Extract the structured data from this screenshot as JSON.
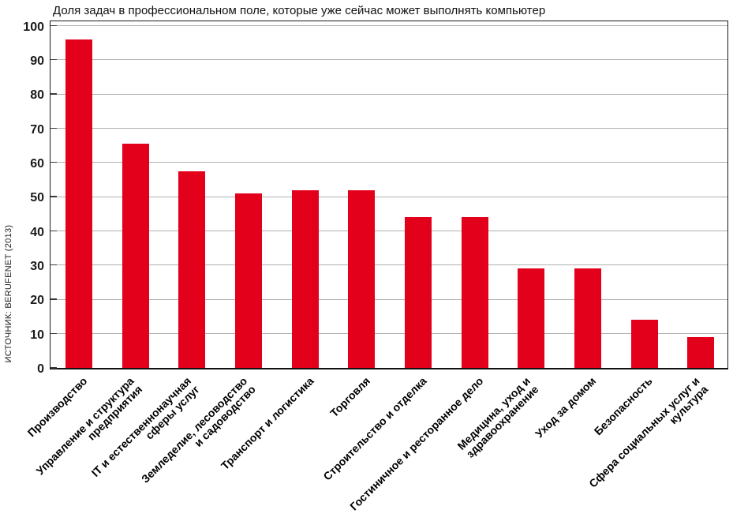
{
  "title": "Доля задач в профессиональном поле, которые уже сейчас может выполнять компьютер",
  "source_label": "ИСТОЧНИК: BERUFENET (2013)",
  "colors": {
    "bar": "#e2001a",
    "grid": "#b0b0b0",
    "axis": "#1a1a1a",
    "tick": "#3a3a3a",
    "text": "#000000"
  },
  "chart_data": {
    "type": "bar",
    "title": "Доля задач в профессиональном поле, которые уже сейчас может выполнять компьютер",
    "source": "ИСТОЧНИК: BERUFENET (2013)",
    "categories": [
      [
        "Производство"
      ],
      [
        "Управление и структура",
        "предприятия"
      ],
      [
        "IT и естественнонаучная",
        "сферы услуг"
      ],
      [
        "Земледелие, лесоводство",
        "и садоводство"
      ],
      [
        "Транспорт и логистика"
      ],
      [
        "Торговля"
      ],
      [
        "Строительство и отделка"
      ],
      [
        "Гостиничное и ресторанное дело"
      ],
      [
        "Медицина, уход и",
        "здравоохранение"
      ],
      [
        "Уход за домом"
      ],
      [
        "Безопасность"
      ],
      [
        "Сфера социальных услуг и",
        "культура"
      ]
    ],
    "values": [
      96,
      65.5,
      57.5,
      51,
      52,
      52,
      44,
      44,
      29,
      29,
      14,
      9
    ],
    "xlabel": "",
    "ylabel": "",
    "ylim": [
      0,
      100
    ],
    "yticks": [
      0,
      10,
      20,
      30,
      40,
      50,
      60,
      70,
      80,
      90,
      100
    ],
    "grid": true,
    "legend": false,
    "bar_color": "#e2001a"
  }
}
